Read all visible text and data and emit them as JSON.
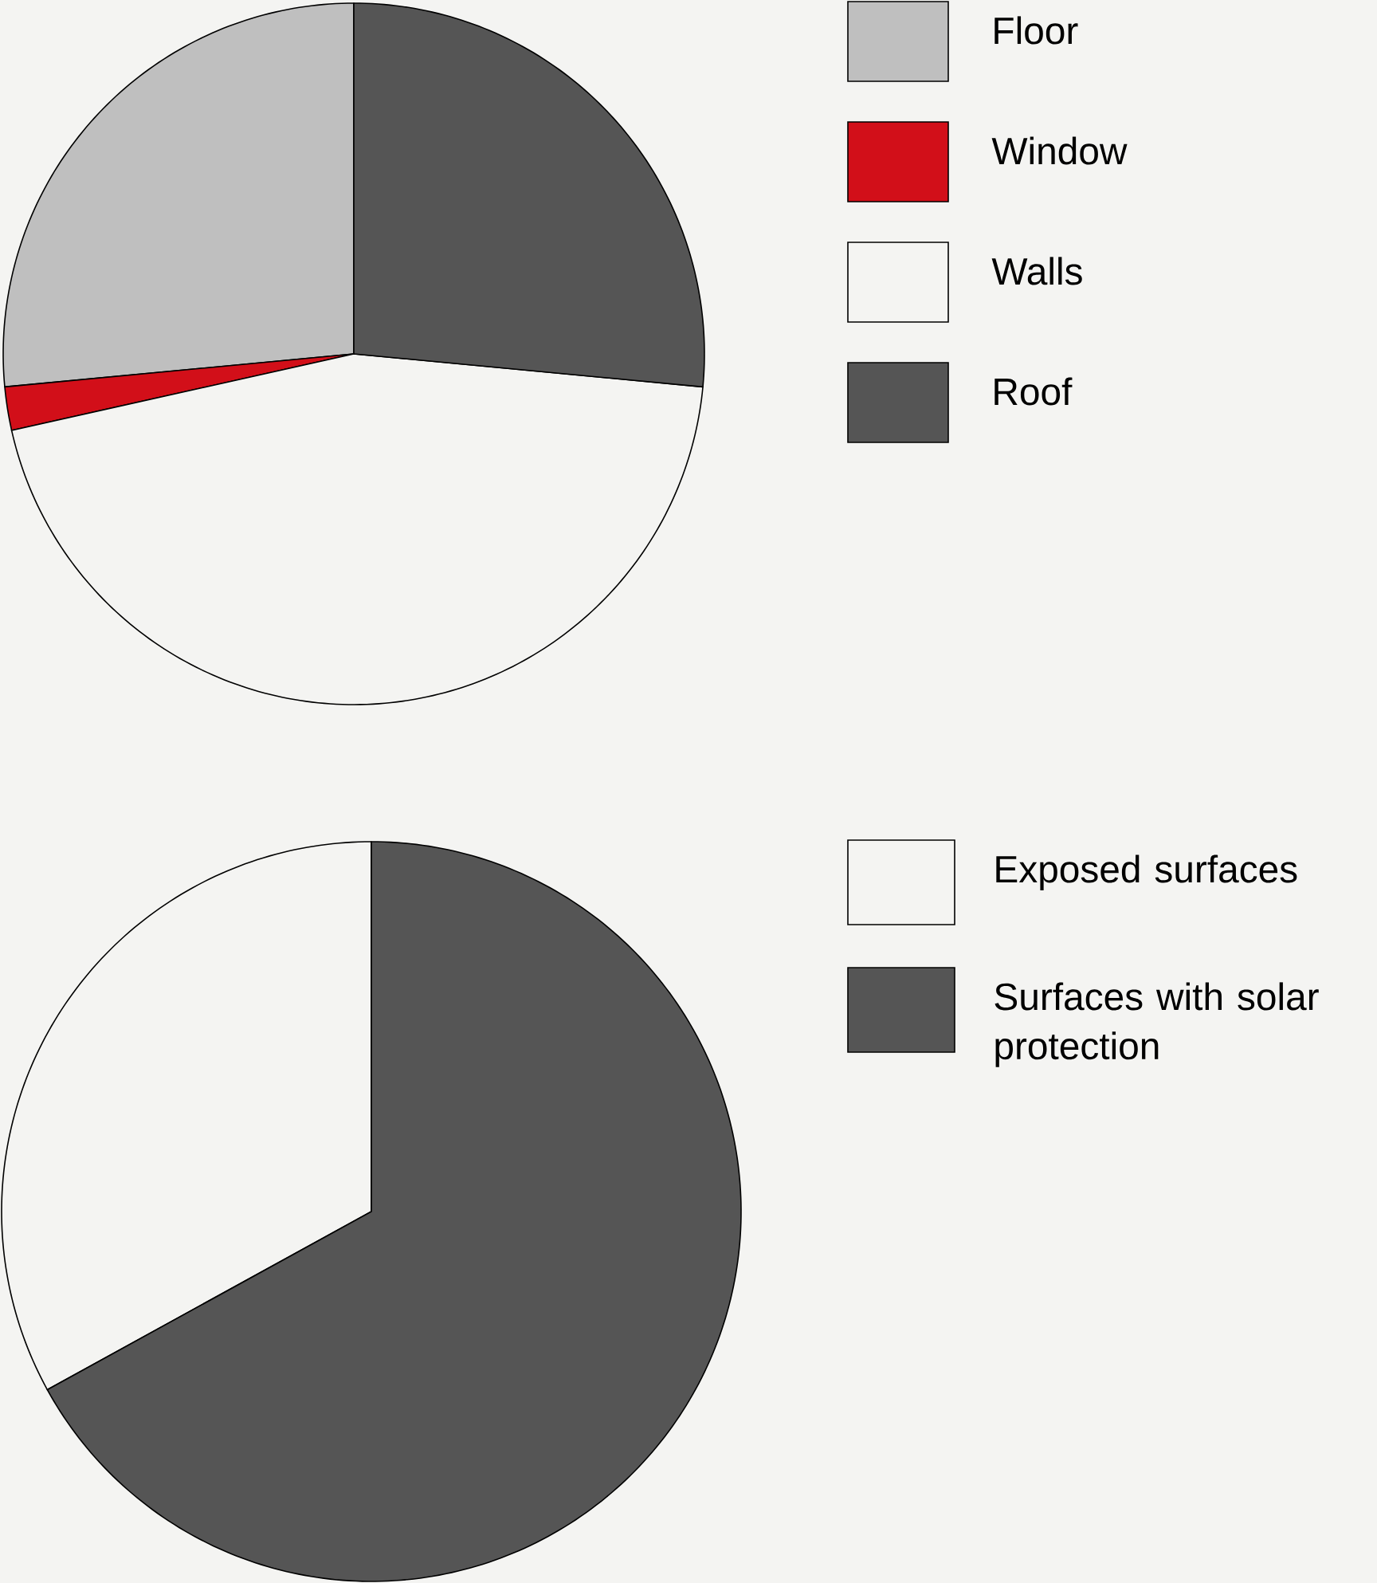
{
  "chart_data": [
    {
      "type": "pie",
      "categories": [
        "Floor",
        "Window",
        "Walls",
        "Roof"
      ],
      "values": [
        26.5,
        2,
        45,
        26.5
      ],
      "colors": [
        "#bfbfbf",
        "#d20f19",
        "#f4f4f2",
        "#555555"
      ],
      "legend": "right"
    },
    {
      "type": "pie",
      "categories": [
        "Exposed surfaces",
        "Surfaces with solar protection"
      ],
      "values": [
        33,
        67
      ],
      "colors": [
        "#f4f4f2",
        "#555555"
      ],
      "legend": "right"
    }
  ]
}
